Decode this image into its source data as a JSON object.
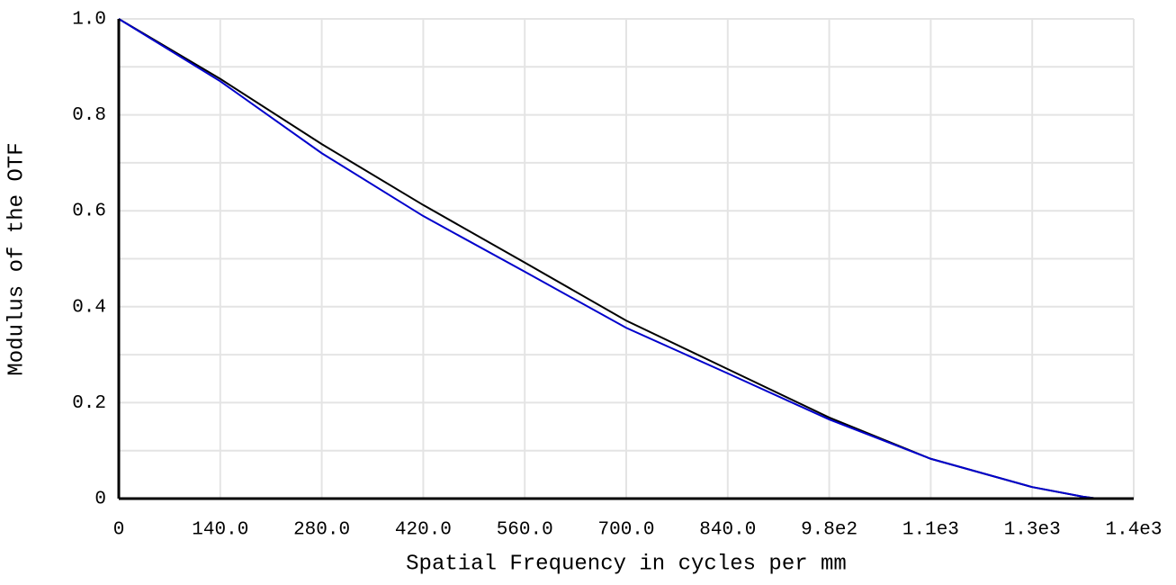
{
  "chart_data": {
    "type": "line",
    "xlabel": "Spatial Frequency in cycles per mm",
    "ylabel": "Modulus of the OTF",
    "x": [
      0,
      140,
      280,
      420,
      560,
      700,
      840,
      980,
      1120,
      1260,
      1330,
      1350,
      1400
    ],
    "series": [
      {
        "color": "#000000",
        "values": [
          1.0,
          0.875,
          0.739,
          0.612,
          0.492,
          0.371,
          0.27,
          0.169,
          0.083,
          0.024,
          0.004,
          0,
          0
        ]
      },
      {
        "color": "#0000cc",
        "values": [
          1.0,
          0.87,
          0.72,
          0.589,
          0.473,
          0.356,
          0.261,
          0.165,
          0.083,
          0.024,
          0.004,
          0,
          0
        ]
      }
    ],
    "xlim": [
      0,
      1400
    ],
    "ylim": [
      0,
      1
    ],
    "xticks": [
      0,
      {
        "value": 140,
        "label": "140.0"
      },
      {
        "value": 280,
        "label": "280.0"
      },
      {
        "value": 420,
        "label": "420.0"
      },
      {
        "value": 560,
        "label": "560.0"
      },
      {
        "value": 700,
        "label": "700.0"
      },
      {
        "value": 840,
        "label": "840.0"
      },
      {
        "value": 980,
        "label": "9.8e2"
      },
      {
        "value": 1120,
        "label": "1.1e3"
      },
      {
        "value": 1260,
        "label": "1.3e3"
      },
      {
        "value": 1400,
        "label": "1.4e3"
      }
    ],
    "yticks": [
      0,
      0.2,
      0.4,
      0.6,
      0.8,
      {
        "value": 1,
        "label": "1.0"
      }
    ],
    "yminorticks": [
      0.1,
      0.3,
      0.5,
      0.7,
      0.9
    ],
    "grid": true
  }
}
